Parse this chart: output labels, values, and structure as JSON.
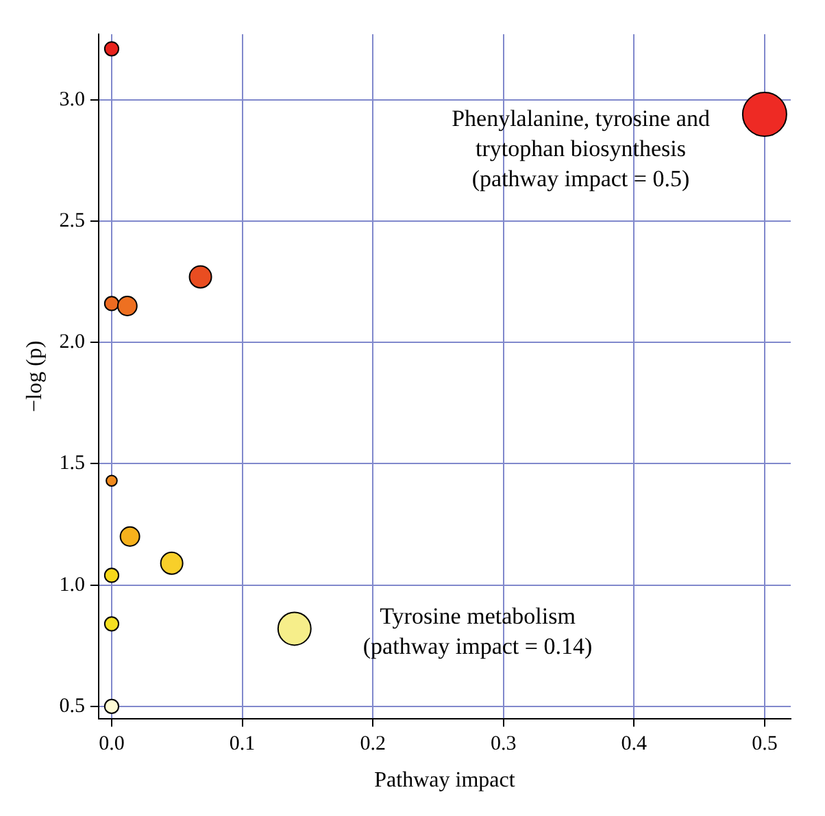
{
  "chart_data": {
    "type": "bubble",
    "xlabel": "Pathway impact",
    "ylabel": "−log (p)",
    "x": [
      0,
      0.5,
      0.068,
      0,
      0.012,
      0,
      0.014,
      0.046,
      0,
      0,
      0.14,
      0
    ],
    "values": [
      3.21,
      2.94,
      2.27,
      2.16,
      2.15,
      1.43,
      1.2,
      1.09,
      1.04,
      0.84,
      0.82,
      0.5
    ],
    "sizes": [
      0.1,
      1,
      0.25,
      0.1,
      0.19,
      0.06,
      0.19,
      0.25,
      0.1,
      0.1,
      0.56,
      0.1
    ],
    "colors": [
      "#e8231e",
      "#ee2a24",
      "#e94d21",
      "#ee6b21",
      "#ee7021",
      "#f08a1e",
      "#f6b11c",
      "#f8cf2a",
      "#f7d81a",
      "#f5e021",
      "#f6ee8a",
      "#fefbd4"
    ],
    "xlim": [
      -0.01,
      0.52
    ],
    "ylim": [
      0.45,
      3.27
    ],
    "xticks": [
      {
        "value": 0,
        "label": "0.0"
      },
      0.1,
      0.2,
      0.3,
      0.4,
      0.5
    ],
    "yticks": [
      0.5,
      {
        "value": 1,
        "label": "1.0"
      },
      1.5,
      {
        "value": 2,
        "label": "2.0"
      },
      2.5,
      {
        "value": 3,
        "label": "3.0"
      }
    ],
    "grid": true,
    "annotations": [
      {
        "text": "Phenylalanine, tyrosine and\ntrytophan biosynthesis\n(pathway impact = 0.5)",
        "x": 0.5,
        "y": 2.94
      },
      {
        "text": "Tyrosine metabolism\n(pathway impact = 0.14)",
        "x": 0.14,
        "y": 0.82
      }
    ]
  }
}
